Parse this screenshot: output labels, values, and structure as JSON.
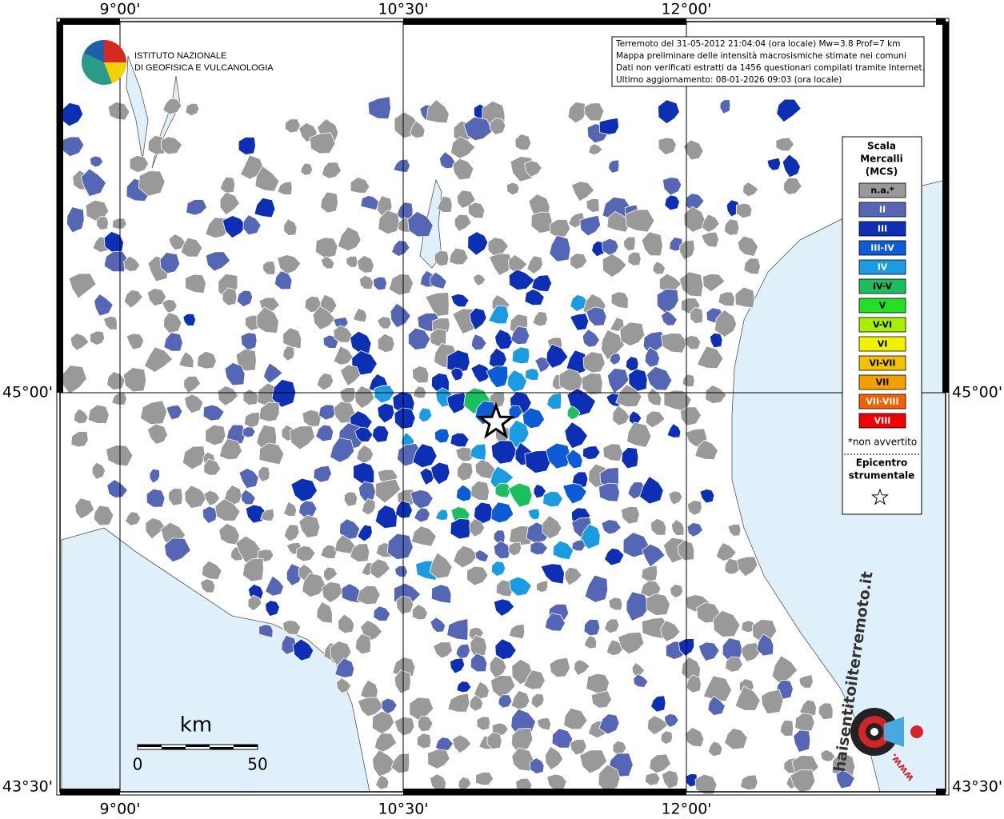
{
  "map": {
    "lon_labels": [
      "9°00'",
      "10°30'",
      "12°00'"
    ],
    "lat_labels": [
      "45°00'",
      "43°30'"
    ]
  },
  "logo": {
    "lines": [
      "ISTITUTO NAZIONALE",
      "DI GEOFISICA E VULCANOLOGIA"
    ]
  },
  "info": {
    "lines": [
      "Terremoto del 31-05-2012 21:04:04 (ora locale) Mw=3.8 Prof=7 km",
      "Mappa preliminare delle intensità macrosismiche stimate nei comuni",
      "Dati non verificati estratti da 1456 questionari compilati tramite Internet.",
      "Ultimo aggiornamento: 08-01-2026 09:03 (ora locale)"
    ]
  },
  "legend": {
    "title": [
      "Scala",
      "Mercalli",
      "(MCS)"
    ],
    "items": [
      {
        "label": "n.a.*",
        "color": "#999999"
      },
      {
        "label": "II",
        "color": "#5566b4"
      },
      {
        "label": "III",
        "color": "#0c2fb4"
      },
      {
        "label": "III-IV",
        "color": "#0c5cd6"
      },
      {
        "label": "IV",
        "color": "#1c9ce0"
      },
      {
        "label": "IV-V",
        "color": "#1cbf5e"
      },
      {
        "label": "V",
        "color": "#22e022"
      },
      {
        "label": "V-VI",
        "color": "#a6f000"
      },
      {
        "label": "VI",
        "color": "#f2f200"
      },
      {
        "label": "VI-VII",
        "color": "#f2c200"
      },
      {
        "label": "VII",
        "color": "#f2a000"
      },
      {
        "label": "VII-VIII",
        "color": "#f26000"
      },
      {
        "label": "VIII",
        "color": "#f00000"
      }
    ],
    "note": "*non avvertito",
    "epicenter_title": [
      "Epicentro",
      "strumentale"
    ]
  },
  "scale_bar": {
    "unit": "km",
    "ticks": [
      "0",
      "50"
    ]
  },
  "watermark": {
    "site": "haisentitoilterremoto.it",
    "prefix": "www."
  }
}
